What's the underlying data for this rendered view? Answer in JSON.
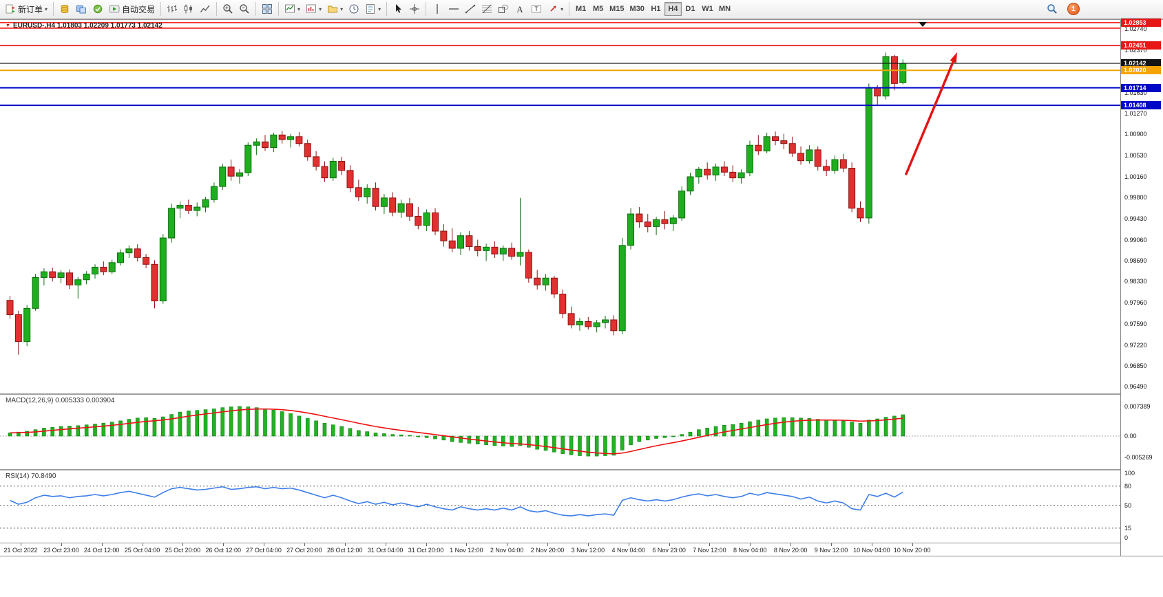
{
  "toolbar": {
    "groups": [
      [
        {
          "name": "new-order-icon",
          "label": "新订单",
          "caret": true
        }
      ],
      [
        {
          "name": "coins-icon"
        },
        {
          "name": "layers-icon"
        },
        {
          "name": "refresh-icon"
        },
        {
          "name": "autotrading-icon",
          "label": "自动交易"
        }
      ],
      [
        {
          "name": "bar-chart-icon"
        },
        {
          "name": "candlestick-icon"
        },
        {
          "name": "line-chart-icon"
        }
      ],
      [
        {
          "name": "zoom-in-icon"
        },
        {
          "name": "zoom-out-icon"
        }
      ],
      [
        {
          "name": "tile-windows-icon"
        }
      ],
      [
        {
          "name": "indicators-icon",
          "caret": true
        },
        {
          "name": "new-chart-icon",
          "caret": true
        },
        {
          "name": "chart-profile-icon",
          "caret": true
        },
        {
          "name": "clock-icon"
        },
        {
          "name": "template-icon",
          "caret": true
        }
      ],
      [
        {
          "name": "cursor-icon"
        },
        {
          "name": "crosshair-icon"
        }
      ],
      [
        {
          "name": "vertical-line-icon"
        },
        {
          "name": "horizontal-line-icon"
        },
        {
          "name": "trendline-icon"
        },
        {
          "name": "fibonacci-icon"
        },
        {
          "name": "shapes-icon"
        },
        {
          "name": "text-icon"
        },
        {
          "name": "label-icon"
        },
        {
          "name": "arrows-icon",
          "caret": true
        }
      ]
    ],
    "timeframes": [
      "M1",
      "M5",
      "M15",
      "M30",
      "H1",
      "H4",
      "D1",
      "W1",
      "MN"
    ],
    "active_timeframe": "H4",
    "notification_count": "1"
  },
  "chart_data": {
    "type": "candlestick",
    "title": "EURUSD-,H4",
    "ohlc_line": "EURUSD-,H4  1.01803 1.02209 1.01773 1.02142",
    "current_bar": {
      "open": 1.01803,
      "high": 1.02209,
      "low": 1.01773,
      "close": 1.02142
    },
    "ylim": [
      0.9635,
      1.029
    ],
    "bull_color": "#1fae1f",
    "bear_color": "#e03030",
    "bull_stroke": "#0b6e0b",
    "bear_stroke": "#8f1111",
    "price_axis": {
      "plain": [
        "1.02740",
        "1.02370",
        "1.01630",
        "1.01270",
        "1.00900",
        "1.00530",
        "1.00160",
        "0.99800",
        "0.99430",
        "0.99060",
        "0.98690",
        "0.98330",
        "0.97960",
        "0.97590",
        "0.97220",
        "0.96850",
        "0.96490"
      ],
      "tags": [
        {
          "price": 1.02853,
          "text": "1.02853",
          "bg": "#e81717"
        },
        {
          "price": 1.02451,
          "text": "1.02451",
          "bg": "#e81717"
        },
        {
          "price": 1.02142,
          "text": "1.02142",
          "bg": "#141414"
        },
        {
          "price": 1.0202,
          "text": "1.02020",
          "bg": "#f5a300"
        },
        {
          "price": 1.01714,
          "text": "1.01714",
          "bg": "#0008c8"
        },
        {
          "price": 1.01408,
          "text": "1.01408",
          "bg": "#0008c8"
        }
      ]
    },
    "levels": [
      {
        "price": 1.02853,
        "color": "#f01414",
        "w": 1.6
      },
      {
        "price": 1.02756,
        "color": "#f01414",
        "w": 1.6
      },
      {
        "price": 1.02451,
        "color": "#f01414",
        "w": 1.6
      },
      {
        "price": 1.02142,
        "color": "#141414",
        "w": 1.2
      },
      {
        "price": 1.0202,
        "color": "#f5a300",
        "w": 2
      },
      {
        "price": 1.01714,
        "color": "#0008c8",
        "w": 2
      },
      {
        "price": 1.01408,
        "color": "#0008c8",
        "w": 2
      }
    ],
    "candles": [
      [
        0.98,
        0.9808,
        0.9768,
        0.9775
      ],
      [
        0.9775,
        0.9782,
        0.9705,
        0.9728
      ],
      [
        0.9728,
        0.9792,
        0.972,
        0.9786
      ],
      [
        0.9786,
        0.9846,
        0.9782,
        0.984
      ],
      [
        0.984,
        0.9856,
        0.9826,
        0.985
      ],
      [
        0.985,
        0.9857,
        0.9833,
        0.984
      ],
      [
        0.984,
        0.9853,
        0.983,
        0.9848
      ],
      [
        0.9848,
        0.9854,
        0.982,
        0.9827
      ],
      [
        0.9827,
        0.9841,
        0.9803,
        0.9836
      ],
      [
        0.9836,
        0.9851,
        0.9828,
        0.9846
      ],
      [
        0.9846,
        0.9863,
        0.9838,
        0.9858
      ],
      [
        0.9858,
        0.9868,
        0.9844,
        0.985
      ],
      [
        0.985,
        0.9871,
        0.9846,
        0.9866
      ],
      [
        0.9866,
        0.9889,
        0.9861,
        0.9883
      ],
      [
        0.9883,
        0.9896,
        0.9874,
        0.989
      ],
      [
        0.989,
        0.9898,
        0.9868,
        0.9875
      ],
      [
        0.9875,
        0.9881,
        0.9856,
        0.9863
      ],
      [
        0.9863,
        0.987,
        0.9786,
        0.9799
      ],
      [
        0.9799,
        0.9916,
        0.9794,
        0.9909
      ],
      [
        0.9909,
        0.9969,
        0.9901,
        0.9961
      ],
      [
        0.9961,
        0.9973,
        0.9944,
        0.9966
      ],
      [
        0.9966,
        0.9976,
        0.9951,
        0.9957
      ],
      [
        0.9957,
        0.9971,
        0.9947,
        0.9963
      ],
      [
        0.9963,
        0.9981,
        0.9954,
        0.9976
      ],
      [
        0.9976,
        1.0006,
        0.9971,
        0.9999
      ],
      [
        0.9999,
        1.0039,
        0.9993,
        1.0033
      ],
      [
        1.0033,
        1.0046,
        1.0009,
        1.0017
      ],
      [
        1.0017,
        1.0029,
        1.0004,
        1.0023
      ],
      [
        1.0023,
        1.0076,
        1.0017,
        1.0071
      ],
      [
        1.0071,
        1.0083,
        1.0054,
        1.0077
      ],
      [
        1.0077,
        1.0089,
        1.0061,
        1.0067
      ],
      [
        1.0067,
        1.0093,
        1.0059,
        1.0089
      ],
      [
        1.0089,
        1.0096,
        1.0074,
        1.0081
      ],
      [
        1.0081,
        1.0091,
        1.0067,
        1.0086
      ],
      [
        1.0086,
        1.0094,
        1.0069,
        1.0074
      ],
      [
        1.0074,
        1.0081,
        1.0044,
        1.0051
      ],
      [
        1.0051,
        1.0061,
        1.0027,
        1.0034
      ],
      [
        1.0034,
        1.0043,
        1.0007,
        1.0014
      ],
      [
        1.0014,
        1.0049,
        1.0009,
        1.0043
      ],
      [
        1.0043,
        1.0051,
        1.0019,
        1.0027
      ],
      [
        1.0027,
        1.0036,
        0.9989,
        0.9997
      ],
      [
        0.9997,
        1.0011,
        0.9974,
        0.9981
      ],
      [
        0.9981,
        1.0003,
        0.9969,
        0.9996
      ],
      [
        0.9996,
        1.0006,
        0.9957,
        0.9964
      ],
      [
        0.9964,
        0.9986,
        0.9951,
        0.9979
      ],
      [
        0.9979,
        0.9989,
        0.9947,
        0.9954
      ],
      [
        0.9954,
        0.9976,
        0.9944,
        0.9969
      ],
      [
        0.9969,
        0.9979,
        0.9939,
        0.9947
      ],
      [
        0.9947,
        0.9963,
        0.9924,
        0.9931
      ],
      [
        0.9931,
        0.9959,
        0.9921,
        0.9953
      ],
      [
        0.9953,
        0.9961,
        0.9914,
        0.9921
      ],
      [
        0.9921,
        0.9933,
        0.9894,
        0.9904
      ],
      [
        0.9904,
        0.9926,
        0.9884,
        0.9891
      ],
      [
        0.9891,
        0.9919,
        0.9879,
        0.9913
      ],
      [
        0.9913,
        0.9921,
        0.9887,
        0.9894
      ],
      [
        0.9894,
        0.9906,
        0.9877,
        0.9887
      ],
      [
        0.9887,
        0.9899,
        0.9869,
        0.9893
      ],
      [
        0.9893,
        0.9903,
        0.9874,
        0.9881
      ],
      [
        0.9881,
        0.9896,
        0.9869,
        0.9891
      ],
      [
        0.9891,
        0.9901,
        0.9871,
        0.9877
      ],
      [
        0.9877,
        0.9979,
        0.9861,
        0.9884
      ],
      [
        0.9884,
        0.9889,
        0.9831,
        0.9839
      ],
      [
        0.9839,
        0.9853,
        0.9819,
        0.9827
      ],
      [
        0.9827,
        0.9846,
        0.9817,
        0.9839
      ],
      [
        0.9839,
        0.9843,
        0.9804,
        0.9811
      ],
      [
        0.9811,
        0.9819,
        0.9769,
        0.9777
      ],
      [
        0.9777,
        0.9789,
        0.9751,
        0.9757
      ],
      [
        0.9757,
        0.9769,
        0.9747,
        0.9763
      ],
      [
        0.9763,
        0.9771,
        0.9749,
        0.9754
      ],
      [
        0.9754,
        0.9766,
        0.9744,
        0.9761
      ],
      [
        0.9761,
        0.9773,
        0.9751,
        0.9766
      ],
      [
        0.9766,
        0.9774,
        0.9739,
        0.9747
      ],
      [
        0.9747,
        0.9909,
        0.9741,
        0.9896
      ],
      [
        0.9896,
        0.9961,
        0.9889,
        0.9951
      ],
      [
        0.9951,
        0.9963,
        0.9927,
        0.9937
      ],
      [
        0.9937,
        0.9951,
        0.9919,
        0.9929
      ],
      [
        0.9929,
        0.9946,
        0.9914,
        0.9941
      ],
      [
        0.9941,
        0.9956,
        0.9924,
        0.9934
      ],
      [
        0.9934,
        0.9949,
        0.9921,
        0.9944
      ],
      [
        0.9944,
        0.9999,
        0.9939,
        0.9991
      ],
      [
        0.9991,
        1.0023,
        0.9984,
        1.0016
      ],
      [
        1.0016,
        1.0033,
        1.0004,
        1.0029
      ],
      [
        1.0029,
        1.0041,
        1.0011,
        1.0019
      ],
      [
        1.0019,
        1.0039,
        1.0009,
        1.0033
      ],
      [
        1.0033,
        1.0043,
        1.0017,
        1.0024
      ],
      [
        1.0024,
        1.0036,
        1.0007,
        1.0014
      ],
      [
        1.0014,
        1.0029,
        1.0004,
        1.0023
      ],
      [
        1.0023,
        1.0079,
        1.0017,
        1.0071
      ],
      [
        1.0071,
        1.0089,
        1.0054,
        1.0061
      ],
      [
        1.0061,
        1.0093,
        1.0057,
        1.0086
      ],
      [
        1.0086,
        1.0095,
        1.0071,
        1.0079
      ],
      [
        1.0079,
        1.0091,
        1.0064,
        1.0074
      ],
      [
        1.0074,
        1.0086,
        1.0051,
        1.0057
      ],
      [
        1.0057,
        1.0069,
        1.0037,
        1.0044
      ],
      [
        1.0044,
        1.0071,
        1.0039,
        1.0063
      ],
      [
        1.0063,
        1.0069,
        1.0027,
        1.0034
      ],
      [
        1.0034,
        1.0046,
        1.0017,
        1.0027
      ],
      [
        1.0027,
        1.0053,
        1.0021,
        1.0046
      ],
      [
        1.0046,
        1.0056,
        1.0024,
        1.0031
      ],
      [
        1.0031,
        1.0041,
        0.9954,
        0.9961
      ],
      [
        0.9961,
        0.9973,
        0.9937,
        0.9944
      ],
      [
        0.9944,
        1.0179,
        0.9934,
        1.0171
      ],
      [
        1.0171,
        1.0176,
        1.0141,
        1.0157
      ],
      [
        1.0157,
        1.0233,
        1.0151,
        1.0226
      ],
      [
        1.0226,
        1.0229,
        1.0167,
        1.0179
      ],
      [
        1.01803,
        1.02209,
        1.01773,
        1.02142
      ]
    ],
    "time_labels": [
      "21 Oct 2022",
      "23 Oct 23:00",
      "24 Oct 12:00",
      "25 Oct 04:00",
      "25 Oct 20:00",
      "26 Oct 12:00",
      "27 Oct 04:00",
      "27 Oct 20:00",
      "28 Oct 12:00",
      "31 Oct 04:00",
      "31 Oct 20:00",
      "1 Nov 12:00",
      "2 Nov 04:00",
      "2 Nov 20:00",
      "3 Nov 12:00",
      "4 Nov 04:00",
      "6 Nov 23:00",
      "7 Nov 12:00",
      "8 Nov 04:00",
      "8 Nov 20:00",
      "9 Nov 12:00",
      "10 Nov 04:00",
      "10 Nov 20:00"
    ],
    "indicators": {
      "macd": {
        "label": "MACD(12,26,9)",
        "values_text": "0.005333 0.003904",
        "axis": [
          "0.007389",
          "0.00",
          "-0.005269"
        ],
        "scale_max": 0.007389,
        "scale_min": -0.005269,
        "hist_color": "#23b223",
        "signal_color": "#ee1111",
        "histogram": [
          0.0008,
          0.001,
          0.0012,
          0.0016,
          0.002,
          0.0022,
          0.0024,
          0.0025,
          0.0026,
          0.0028,
          0.003,
          0.0032,
          0.0035,
          0.0038,
          0.0042,
          0.0045,
          0.0046,
          0.0044,
          0.0048,
          0.0054,
          0.006,
          0.0063,
          0.0064,
          0.0066,
          0.0068,
          0.0071,
          0.0073,
          0.0074,
          0.0073,
          0.0071,
          0.0068,
          0.0065,
          0.0061,
          0.0056,
          0.005,
          0.0044,
          0.0038,
          0.0032,
          0.0028,
          0.0024,
          0.0019,
          0.0014,
          0.0011,
          0.0008,
          0.0006,
          0.0004,
          0.0003,
          0.0001,
          -0.0002,
          -0.0004,
          -0.0007,
          -0.001,
          -0.0014,
          -0.0016,
          -0.0018,
          -0.002,
          -0.0022,
          -0.0024,
          -0.0025,
          -0.0026,
          -0.0024,
          -0.0028,
          -0.0033,
          -0.0036,
          -0.004,
          -0.0044,
          -0.0047,
          -0.0049,
          -0.005,
          -0.005,
          -0.0049,
          -0.0048,
          -0.0035,
          -0.0022,
          -0.0014,
          -0.001,
          -0.0006,
          -0.0004,
          -0.0001,
          0.0004,
          0.001,
          0.0016,
          0.002,
          0.0024,
          0.0027,
          0.0029,
          0.0032,
          0.0036,
          0.004,
          0.0043,
          0.0045,
          0.0046,
          0.0046,
          0.0045,
          0.0044,
          0.0042,
          0.004,
          0.0039,
          0.0038,
          0.0035,
          0.0032,
          0.004,
          0.0043,
          0.0047,
          0.005,
          0.005333
        ]
      },
      "rsi": {
        "label": "RSI(14)",
        "value_text": "70.8490",
        "axis": [
          "100",
          "80",
          "50",
          "15",
          "0"
        ],
        "levels": [
          80,
          50,
          15
        ],
        "line_color": "#3d7ee8",
        "values": [
          58,
          52,
          55,
          62,
          66,
          64,
          65,
          62,
          64,
          65,
          67,
          65,
          67,
          70,
          72,
          69,
          66,
          63,
          70,
          76,
          78,
          76,
          74,
          75,
          77,
          79,
          75,
          76,
          78,
          79,
          76,
          78,
          76,
          77,
          74,
          70,
          66,
          62,
          66,
          62,
          57,
          53,
          56,
          52,
          55,
          51,
          54,
          51,
          48,
          52,
          48,
          45,
          43,
          48,
          45,
          43,
          45,
          43,
          46,
          43,
          48,
          42,
          40,
          42,
          38,
          35,
          34,
          36,
          34,
          36,
          37,
          35,
          58,
          62,
          59,
          57,
          59,
          57,
          59,
          63,
          66,
          68,
          65,
          67,
          64,
          62,
          64,
          69,
          66,
          70,
          68,
          66,
          64,
          60,
          63,
          57,
          54,
          57,
          54,
          45,
          43,
          67,
          64,
          69,
          63,
          70.85
        ]
      }
    },
    "annotations": [
      {
        "type": "arrow",
        "from": [
          1316,
          224
        ],
        "to": [
          1390,
          47
        ],
        "color": "#e51414",
        "width": 3.5
      }
    ],
    "shift_marker_x": 1340
  }
}
